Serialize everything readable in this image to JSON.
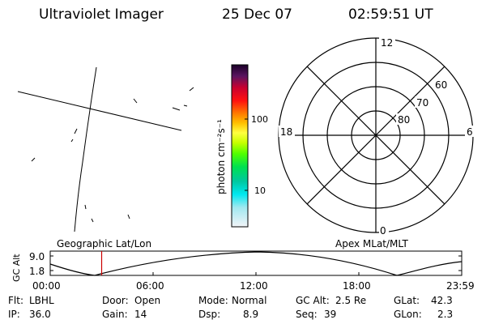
{
  "header": {
    "app_title": "Ultraviolet Imager",
    "date": "25 Dec 07",
    "time": "02:59:51 UT"
  },
  "colorbar": {
    "unit_label": "photon cm⁻²s⁻¹",
    "tick_100": "100",
    "tick_10": "10"
  },
  "polar_plot": {
    "mlt_top": "12",
    "mlt_bottom": "0",
    "mlt_left": "18",
    "mlt_right": "6",
    "lat_60": "60",
    "lat_70": "70",
    "lat_80": "80"
  },
  "altitude_plot": {
    "left_title": "Geographic Lat/Lon",
    "right_title": "Apex MLat/MLT",
    "ylabel": "GC Alt",
    "y_top": "9.0",
    "y_bottom": "1.8",
    "x_ticks": [
      "00:00",
      "06:00",
      "12:00",
      "18:00",
      "23:59"
    ],
    "current_time_fraction": 0.125
  },
  "status": {
    "filter_label": "Flt:",
    "filter_value": "LBHL",
    "ip_label": "IP:",
    "ip_value": "36.0",
    "door_label": "Door:",
    "door_value": "Open",
    "gain_label": "Gain:",
    "gain_value": "14",
    "mode_label": "Mode:",
    "mode_value": "Normal",
    "dsp_label": "Dsp:",
    "dsp_value": "8.9",
    "gcalt_label": "GC Alt:",
    "gcalt_value": "2.5 Re",
    "seq_label": "Seq:",
    "seq_value": "39",
    "glat_label": "GLat:",
    "glat_value": "42.3",
    "glon_label": "GLon:",
    "glon_value": "2.3"
  },
  "colors": {
    "marker": "#cc0000",
    "lines": "#000000"
  }
}
